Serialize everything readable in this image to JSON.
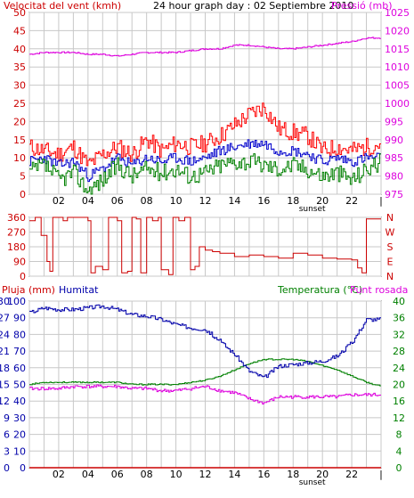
{
  "header": {
    "wind_title": "Velocitat del vent (kmh)",
    "graph_title": "24 hour graph day : 02 Septiembre 2010",
    "pressure_title": "Pressió (mb)"
  },
  "colors": {
    "wind_gust": "#ff0000",
    "wind_avg": "#0000cc",
    "wind_low": "#008000",
    "pressure": "#dd00dd",
    "direction": "#cc0000",
    "humidity": "#0000aa",
    "temperature": "#008000",
    "dewpoint": "#dd00dd",
    "rain": "#cc0000",
    "grid": "#c8c8c8"
  },
  "x_ticks": [
    "02",
    "04",
    "06",
    "08",
    "10",
    "12",
    "14",
    "16",
    "18",
    "20",
    "22"
  ],
  "sunset_label": "sunset",
  "chart_data": [
    {
      "type": "line",
      "title": "24 hour graph day : 02 Septiembre 2010",
      "ylabel": "Velocitat del vent (kmh)",
      "ylabel_right": "Pressió (mb)",
      "ylim": [
        0,
        50
      ],
      "y_ticks": [
        0,
        5,
        10,
        15,
        20,
        25,
        30,
        35,
        40,
        45,
        50
      ],
      "ylim_right": [
        975,
        1025
      ],
      "y_ticks_right": [
        975,
        980,
        985,
        990,
        995,
        1000,
        1005,
        1010,
        1015,
        1020,
        1025
      ],
      "x_hours": [
        0,
        1,
        2,
        3,
        4,
        5,
        6,
        7,
        8,
        9,
        10,
        11,
        12,
        13,
        14,
        15,
        16,
        17,
        18,
        19,
        20,
        21,
        22,
        23,
        24
      ],
      "series": [
        {
          "axis": "right",
          "values": [
            1013.5,
            1014,
            1014,
            1014,
            1013.5,
            1013.5,
            1013,
            1013.5,
            1014,
            1014,
            1014,
            1014.5,
            1015,
            1015,
            1016,
            1016,
            1015.5,
            1015,
            1015,
            1015.5,
            1016,
            1016.5,
            1017,
            1018,
            1018
          ]
        },
        {
          "axis": "left",
          "values": [
            13,
            12,
            11,
            13,
            8,
            11,
            13,
            11,
            15,
            12,
            14,
            13,
            14,
            16,
            19,
            22,
            24,
            18,
            17,
            16,
            12,
            13,
            12,
            13,
            14
          ]
        },
        {
          "axis": "left",
          "values": [
            9,
            10,
            8,
            9,
            5,
            7,
            10,
            8,
            10,
            9,
            10,
            9,
            10,
            12,
            13,
            14,
            14,
            12,
            12,
            11,
            9,
            10,
            9,
            10,
            10
          ]
        },
        {
          "axis": "left",
          "values": [
            6,
            8,
            4,
            6,
            1,
            4,
            8,
            5,
            7,
            6,
            7,
            5,
            6,
            8,
            9,
            9,
            8,
            7,
            8,
            7,
            5,
            6,
            4,
            7,
            9
          ]
        }
      ]
    },
    {
      "type": "line",
      "y_ticks": [
        0,
        90,
        180,
        270,
        360
      ],
      "ylim": [
        0,
        360
      ],
      "right_labels": [
        "N",
        "W",
        "S",
        "E",
        "N"
      ],
      "x_hours": [
        0,
        0.4,
        0.8,
        1.2,
        1.4,
        1.6,
        1.9,
        2.3,
        2.6,
        3,
        3.5,
        4,
        4.2,
        4.5,
        5,
        5.4,
        5.7,
        6,
        6.3,
        6.7,
        7,
        7.3,
        7.6,
        8,
        8.4,
        8.8,
        9,
        9.5,
        9.8,
        10.2,
        10.6,
        11,
        11.3,
        11.6,
        12,
        12.5,
        13,
        14,
        15,
        16,
        17,
        18,
        19,
        20,
        21,
        22,
        22.4,
        22.7,
        23,
        23.5,
        24
      ],
      "values": [
        340,
        360,
        250,
        90,
        30,
        360,
        360,
        340,
        360,
        360,
        360,
        340,
        20,
        60,
        40,
        360,
        360,
        340,
        20,
        30,
        360,
        350,
        20,
        360,
        340,
        360,
        40,
        10,
        360,
        340,
        360,
        40,
        60,
        180,
        160,
        150,
        140,
        120,
        130,
        120,
        110,
        140,
        130,
        110,
        105,
        100,
        50,
        20,
        350,
        350,
        350
      ]
    },
    {
      "type": "line",
      "title_left_1": "Pluja (mm)",
      "title_left_2": "Humitat",
      "title_right_1": "Temperatura (°C)",
      "title_right_2": "Punt rosada",
      "ylim": [
        0,
        100
      ],
      "y_ticks_humidity": [
        0,
        10,
        20,
        30,
        40,
        50,
        60,
        70,
        80,
        90,
        100
      ],
      "y_ticks_rain": [
        0,
        3,
        6,
        9,
        12,
        15,
        18,
        21,
        24,
        27,
        30
      ],
      "ylim_right": [
        0,
        40
      ],
      "y_ticks_right": [
        0,
        4,
        8,
        12,
        16,
        20,
        24,
        28,
        32,
        36,
        40
      ],
      "x_hours": [
        0,
        1,
        2,
        3,
        4,
        5,
        6,
        7,
        8,
        9,
        10,
        11,
        12,
        13,
        14,
        15,
        16,
        17,
        18,
        19,
        20,
        21,
        22,
        23,
        24
      ],
      "series": [
        {
          "axis": "humidity",
          "values": [
            93,
            96,
            95,
            95,
            96,
            97,
            95,
            92,
            91,
            89,
            86,
            84,
            83,
            76,
            68,
            58,
            54,
            61,
            62,
            63,
            64,
            67,
            75,
            89,
            89
          ]
        },
        {
          "axis": "right",
          "values": [
            20,
            20.5,
            20.5,
            20.5,
            20.5,
            20.5,
            20.5,
            20,
            20,
            20,
            20,
            20.5,
            21,
            22,
            23.5,
            25,
            26,
            26,
            26,
            25.5,
            24.5,
            23.5,
            22,
            20.5,
            19.5
          ]
        },
        {
          "axis": "right",
          "values": [
            19,
            19,
            19,
            19.5,
            19.5,
            19.5,
            19.5,
            19,
            19,
            18.5,
            18.5,
            19,
            19.5,
            18.5,
            18,
            16.5,
            15.5,
            17,
            17,
            17,
            17,
            17,
            17.5,
            17.5,
            17.5
          ]
        },
        {
          "axis": "rain",
          "values": [
            0,
            0,
            0,
            0,
            0,
            0,
            0,
            0,
            0,
            0,
            0,
            0,
            0,
            0,
            0,
            0,
            0,
            0,
            0,
            0,
            0,
            0,
            0,
            0,
            0
          ]
        }
      ]
    }
  ]
}
